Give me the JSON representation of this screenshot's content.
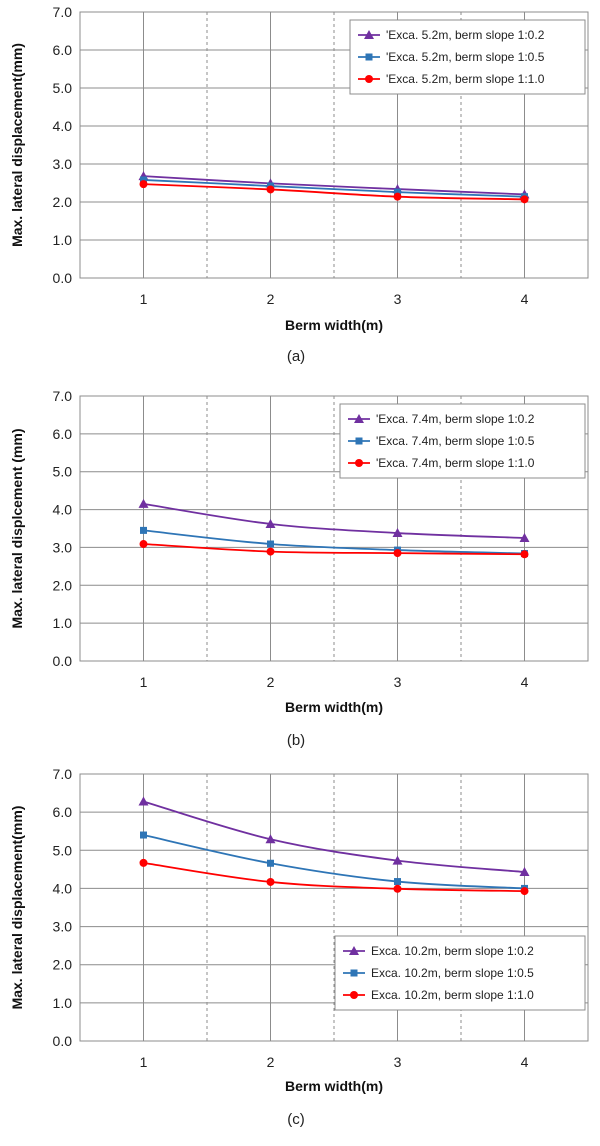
{
  "chart_data": [
    {
      "type": "line",
      "panel_label": "(a)",
      "xlabel": "Berm width(m)",
      "ylabel": "Max. lateral displacement(mm)",
      "x": [
        1,
        2,
        3,
        4
      ],
      "ylim": [
        0,
        7
      ],
      "yticks": [
        "0.0",
        "1.0",
        "2.0",
        "3.0",
        "4.0",
        "5.0",
        "6.0",
        "7.0"
      ],
      "legend_position": "top-right",
      "series": [
        {
          "name": "'Exca. 5.2m, berm slope 1:0.2",
          "color": "#7030a0",
          "marker": "triangle",
          "values": [
            2.68,
            2.49,
            2.34,
            2.2
          ]
        },
        {
          "name": "'Exca. 5.2m, berm slope 1:0.5",
          "color": "#2e75b6",
          "marker": "square",
          "values": [
            2.58,
            2.42,
            2.26,
            2.14
          ]
        },
        {
          "name": "'Exca. 5.2m, berm slope 1:1.0",
          "color": "#ff0000",
          "marker": "circle",
          "values": [
            2.47,
            2.33,
            2.14,
            2.07
          ]
        }
      ]
    },
    {
      "type": "line",
      "panel_label": "(b)",
      "xlabel": "Berm width(m)",
      "ylabel": "Max. lateral displcement (mm)",
      "x": [
        1,
        2,
        3,
        4
      ],
      "ylim": [
        0,
        7
      ],
      "yticks": [
        "0.0",
        "1.0",
        "2.0",
        "3.0",
        "4.0",
        "5.0",
        "6.0",
        "7.0"
      ],
      "legend_position": "top-right",
      "series": [
        {
          "name": "'Exca. 7.4m, berm slope 1:0.2",
          "color": "#7030a0",
          "marker": "triangle",
          "values": [
            4.15,
            3.62,
            3.38,
            3.25
          ]
        },
        {
          "name": "'Exca. 7.4m, berm slope 1:0.5",
          "color": "#2e75b6",
          "marker": "square",
          "values": [
            3.45,
            3.09,
            2.93,
            2.84
          ]
        },
        {
          "name": "'Exca. 7.4m, berm slope 1:1.0",
          "color": "#ff0000",
          "marker": "circle",
          "values": [
            3.09,
            2.89,
            2.85,
            2.82
          ]
        }
      ]
    },
    {
      "type": "line",
      "panel_label": "(c)",
      "xlabel": "Berm width(m)",
      "ylabel": "Max. lateral displacement(mm)",
      "x": [
        1,
        2,
        3,
        4
      ],
      "ylim": [
        0,
        7
      ],
      "yticks": [
        "0.0",
        "1.0",
        "2.0",
        "3.0",
        "4.0",
        "5.0",
        "6.0",
        "7.0"
      ],
      "legend_position": "bottom-right",
      "series": [
        {
          "name": "Exca. 10.2m, berm slope 1:0.2",
          "color": "#7030a0",
          "marker": "triangle",
          "values": [
            6.28,
            5.29,
            4.73,
            4.43
          ]
        },
        {
          "name": "Exca. 10.2m, berm slope 1:0.5",
          "color": "#2e75b6",
          "marker": "square",
          "values": [
            5.4,
            4.66,
            4.18,
            4.0
          ]
        },
        {
          "name": "Exca. 10.2m, berm slope 1:1.0",
          "color": "#ff0000",
          "marker": "circle",
          "values": [
            4.67,
            4.17,
            3.99,
            3.93
          ]
        }
      ]
    }
  ]
}
